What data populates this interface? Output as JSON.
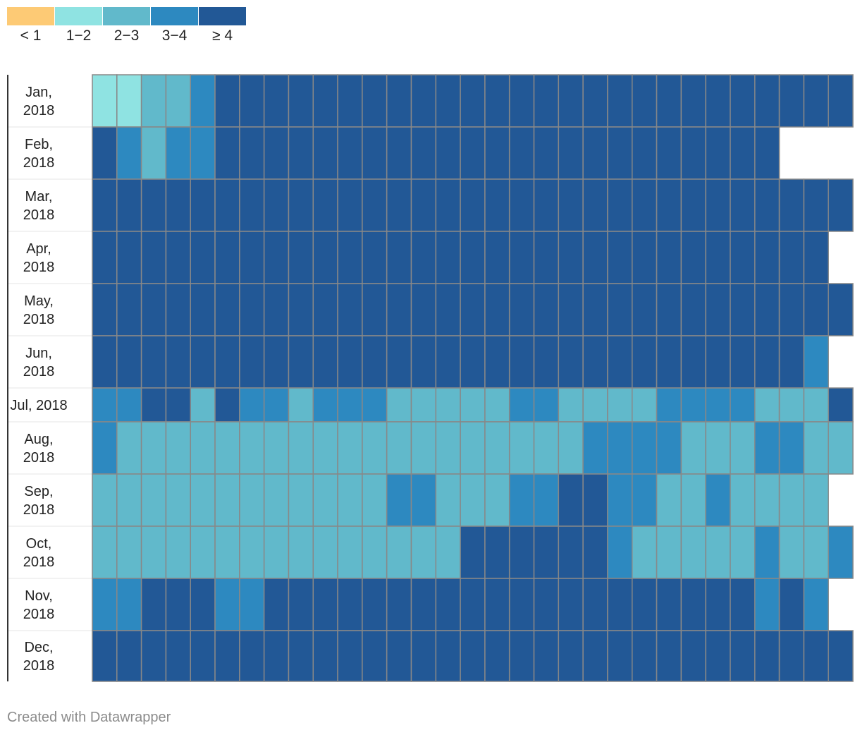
{
  "legend": [
    {
      "label": "< 1",
      "color": "#fdca75"
    },
    {
      "label": "1−2",
      "color": "#8fe3e2"
    },
    {
      "label": "2−3",
      "color": "#61b9cb"
    },
    {
      "label": "3−4",
      "color": "#2d89c0"
    },
    {
      "label": "≥ 4",
      "color": "#225896"
    }
  ],
  "chart_data": {
    "type": "heatmap",
    "rows": [
      {
        "label": [
          "Jan,",
          "2018"
        ],
        "values": [
          1,
          1,
          2,
          2,
          3,
          4,
          4,
          4,
          4,
          4,
          4,
          4,
          4,
          4,
          4,
          4,
          4,
          4,
          4,
          4,
          4,
          4,
          4,
          4,
          4,
          4,
          4,
          4,
          4,
          4,
          4
        ]
      },
      {
        "label": [
          "Feb,",
          "2018"
        ],
        "values": [
          4,
          3,
          2,
          3,
          3,
          4,
          4,
          4,
          4,
          4,
          4,
          4,
          4,
          4,
          4,
          4,
          4,
          4,
          4,
          4,
          4,
          4,
          4,
          4,
          4,
          4,
          4,
          4
        ]
      },
      {
        "label": [
          "Mar,",
          "2018"
        ],
        "values": [
          4,
          4,
          4,
          4,
          4,
          4,
          4,
          4,
          4,
          4,
          4,
          4,
          4,
          4,
          4,
          4,
          4,
          4,
          4,
          4,
          4,
          4,
          4,
          4,
          4,
          4,
          4,
          4,
          4,
          4,
          4
        ]
      },
      {
        "label": [
          "Apr,",
          "2018"
        ],
        "values": [
          4,
          4,
          4,
          4,
          4,
          4,
          4,
          4,
          4,
          4,
          4,
          4,
          4,
          4,
          4,
          4,
          4,
          4,
          4,
          4,
          4,
          4,
          4,
          4,
          4,
          4,
          4,
          4,
          4,
          4
        ]
      },
      {
        "label": [
          "May,",
          "2018"
        ],
        "values": [
          4,
          4,
          4,
          4,
          4,
          4,
          4,
          4,
          4,
          4,
          4,
          4,
          4,
          4,
          4,
          4,
          4,
          4,
          4,
          4,
          4,
          4,
          4,
          4,
          4,
          4,
          4,
          4,
          4,
          4,
          4
        ]
      },
      {
        "label": [
          "Jun,",
          "2018"
        ],
        "values": [
          4,
          4,
          4,
          4,
          4,
          4,
          4,
          4,
          4,
          4,
          4,
          4,
          4,
          4,
          4,
          4,
          4,
          4,
          4,
          4,
          4,
          4,
          4,
          4,
          4,
          4,
          4,
          4,
          4,
          3
        ]
      },
      {
        "label": [
          "Jul, 2018"
        ],
        "values": [
          3,
          3,
          4,
          4,
          2,
          4,
          3,
          3,
          2,
          3,
          3,
          3,
          2,
          2,
          2,
          2,
          2,
          3,
          3,
          2,
          2,
          2,
          2,
          3,
          3,
          3,
          3,
          2,
          2,
          2,
          4
        ]
      },
      {
        "label": [
          "Aug,",
          "2018"
        ],
        "values": [
          3,
          2,
          2,
          2,
          2,
          2,
          2,
          2,
          2,
          2,
          2,
          2,
          2,
          2,
          2,
          2,
          2,
          2,
          2,
          2,
          3,
          3,
          3,
          3,
          2,
          2,
          2,
          3,
          3,
          2,
          2
        ]
      },
      {
        "label": [
          "Sep,",
          "2018"
        ],
        "values": [
          2,
          2,
          2,
          2,
          2,
          2,
          2,
          2,
          2,
          2,
          2,
          2,
          3,
          3,
          2,
          2,
          2,
          3,
          3,
          4,
          4,
          3,
          3,
          2,
          2,
          3,
          2,
          2,
          2,
          2
        ]
      },
      {
        "label": [
          "Oct,",
          "2018"
        ],
        "values": [
          2,
          2,
          2,
          2,
          2,
          2,
          2,
          2,
          2,
          2,
          2,
          2,
          2,
          2,
          2,
          4,
          4,
          4,
          4,
          4,
          4,
          3,
          2,
          2,
          2,
          2,
          2,
          3,
          2,
          2,
          3
        ]
      },
      {
        "label": [
          "Nov,",
          "2018"
        ],
        "values": [
          3,
          3,
          4,
          4,
          4,
          3,
          3,
          4,
          4,
          4,
          4,
          4,
          4,
          4,
          4,
          4,
          4,
          4,
          4,
          4,
          4,
          4,
          4,
          4,
          4,
          4,
          4,
          3,
          4,
          3
        ]
      },
      {
        "label": [
          "Dec,",
          "2018"
        ],
        "values": [
          4,
          4,
          4,
          4,
          4,
          4,
          4,
          4,
          4,
          4,
          4,
          4,
          4,
          4,
          4,
          4,
          4,
          4,
          4,
          4,
          4,
          4,
          4,
          4,
          4,
          4,
          4,
          4,
          4,
          4,
          4
        ]
      }
    ]
  },
  "footer": "Created with Datawrapper"
}
